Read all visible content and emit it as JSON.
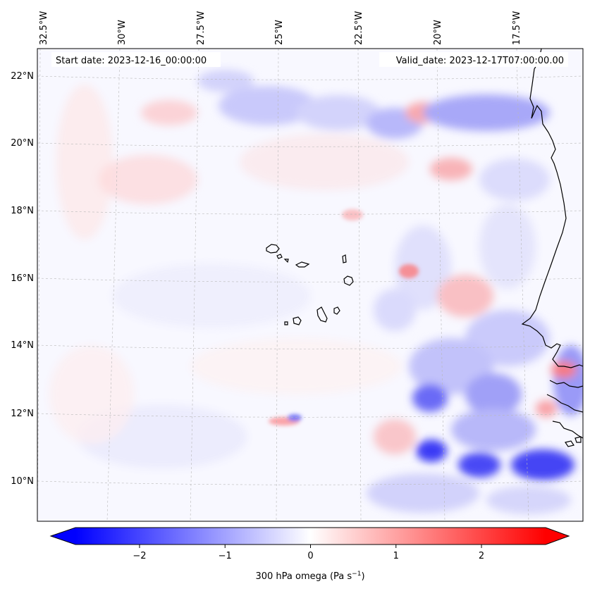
{
  "annotations": {
    "start_date": "Start date: 2023-12-16_00:00:00",
    "valid_date": "Valid_date: 2023-12-17T07:00:00.00"
  },
  "map": {
    "lon_labels": [
      "32.5°W",
      "30°W",
      "27.5°W",
      "25°W",
      "22.5°W",
      "20°W",
      "17.5°W"
    ],
    "lat_labels": [
      "22°N",
      "20°N",
      "18°N",
      "16°N",
      "14°N",
      "12°N",
      "10°N"
    ],
    "lon_range": [
      -32.6,
      -15.2
    ],
    "lat_range": [
      8.9,
      22.8
    ]
  },
  "colorbar": {
    "label": "300 hPa omega (Pa s",
    "label_unit_exp": "−1",
    "label_suffix": ")",
    "range": [
      -2.75,
      2.75
    ],
    "tick_values": [
      -2,
      -1,
      0,
      1,
      2
    ],
    "tick_labels": [
      "−2",
      "−1",
      "0",
      "1",
      "2"
    ],
    "colors": {
      "min": "#0000ff",
      "mid": "#ffffff",
      "max": "#ff0000"
    }
  }
}
